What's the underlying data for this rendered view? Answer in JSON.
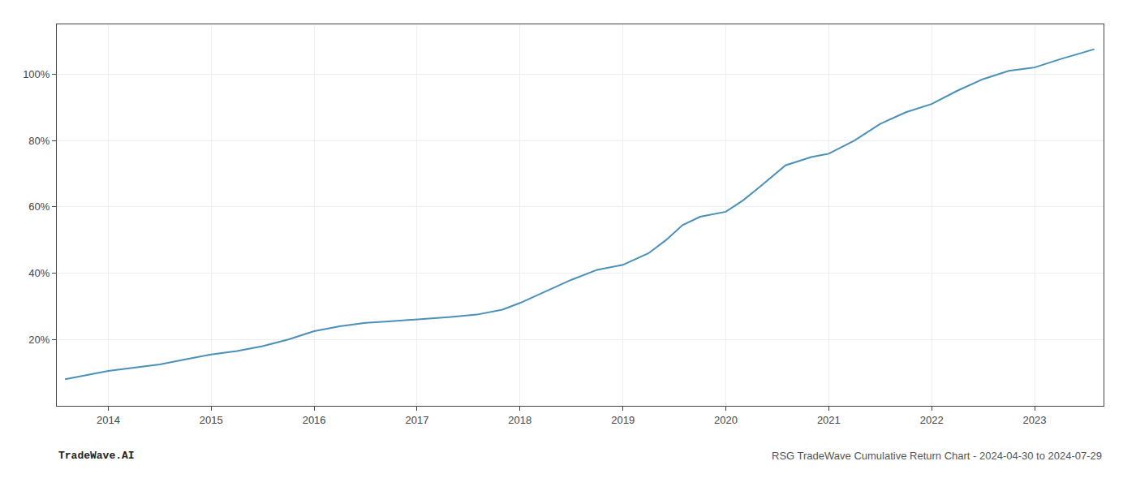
{
  "chart_data": {
    "type": "line",
    "title": "RSG TradeWave Cumulative Return Chart - 2024-04-30 to 2024-07-29",
    "annotations": [
      "TradeWave.AI"
    ],
    "x": [
      2013.58,
      2013.75,
      2014.0,
      2014.25,
      2014.5,
      2014.75,
      2015.0,
      2015.25,
      2015.5,
      2015.75,
      2016.0,
      2016.25,
      2016.5,
      2016.75,
      2017.0,
      2017.17,
      2017.33,
      2017.58,
      2017.83,
      2018.0,
      2018.25,
      2018.5,
      2018.75,
      2019.0,
      2019.25,
      2019.42,
      2019.58,
      2019.75,
      2020.0,
      2020.17,
      2020.33,
      2020.58,
      2020.83,
      2021.0,
      2021.25,
      2021.5,
      2021.75,
      2022.0,
      2022.25,
      2022.5,
      2022.75,
      2023.0,
      2023.25,
      2023.58
    ],
    "values": [
      8.0,
      9.0,
      10.5,
      11.5,
      12.5,
      14.0,
      15.5,
      16.5,
      18.0,
      20.0,
      22.5,
      24.0,
      25.0,
      25.5,
      26.0,
      26.3,
      26.8,
      27.5,
      29.0,
      31.0,
      34.5,
      38.0,
      41.0,
      42.5,
      46.0,
      50.0,
      54.5,
      57.0,
      58.5,
      62.0,
      66.0,
      72.5,
      75.0,
      76.0,
      80.0,
      85.0,
      88.5,
      91.0,
      95.0,
      98.5,
      101.0,
      102.0,
      104.5,
      107.5
    ],
    "color": "#4a90b8",
    "xlim": [
      2013.5,
      2023.67
    ],
    "xticks": [
      2014,
      2015,
      2016,
      2017,
      2018,
      2019,
      2020,
      2021,
      2022,
      2023
    ],
    "ylim": [
      0,
      115
    ],
    "yticks": [
      {
        "value": 20,
        "label": "20%"
      },
      {
        "value": 40,
        "label": "40%"
      },
      {
        "value": 60,
        "label": "60%"
      },
      {
        "value": 80,
        "label": "80%"
      },
      {
        "value": 100,
        "label": "100%"
      }
    ],
    "grid": true
  }
}
